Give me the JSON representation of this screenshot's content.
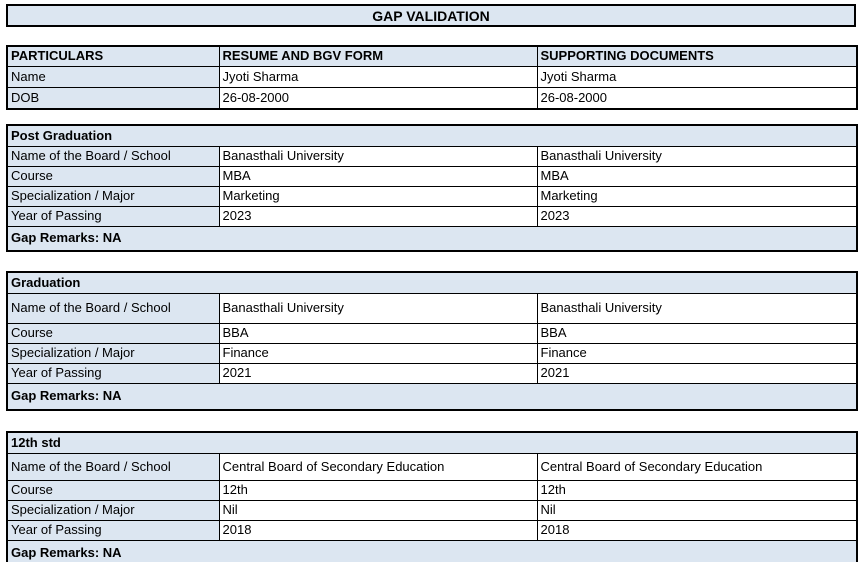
{
  "title": "GAP VALIDATION",
  "colors": {
    "header_fill": "#dce6f1",
    "border": "#000000",
    "text": "#000000",
    "background": "#ffffff"
  },
  "particulars_table": {
    "headers": [
      "PARTICULARS",
      "RESUME AND BGV FORM",
      "SUPPORTING DOCUMENTS"
    ],
    "rows": [
      {
        "label": "Name",
        "resume": "Jyoti Sharma",
        "supporting": "Jyoti Sharma"
      },
      {
        "label": "DOB",
        "resume": "26-08-2000",
        "supporting": "26-08-2000"
      }
    ]
  },
  "sections": [
    {
      "title": "Post Graduation",
      "rows": [
        {
          "label": "Name of the Board / School",
          "resume": "Banasthali University",
          "supporting": "Banasthali University"
        },
        {
          "label": "Course",
          "resume": "MBA",
          "supporting": "MBA"
        },
        {
          "label": "Specialization / Major",
          "resume": "Marketing",
          "supporting": "Marketing"
        },
        {
          "label": "Year of Passing",
          "resume": "2023",
          "supporting": "2023"
        }
      ],
      "gap_remarks": "Gap Remarks: NA"
    },
    {
      "title": "Graduation",
      "rows": [
        {
          "label": "Name of the Board / School",
          "resume": "Banasthali University",
          "supporting": "Banasthali University"
        },
        {
          "label": "Course",
          "resume": "BBA",
          "supporting": "BBA"
        },
        {
          "label": "Specialization / Major",
          "resume": "Finance",
          "supporting": "Finance"
        },
        {
          "label": "Year of Passing",
          "resume": "2021",
          "supporting": "2021"
        }
      ],
      "gap_remarks": "Gap Remarks: NA"
    },
    {
      "title": "12th std",
      "rows": [
        {
          "label": "Name of the Board / School",
          "resume": "Central Board of Secondary Education",
          "supporting": "Central Board of Secondary Education"
        },
        {
          "label": "Course",
          "resume": "12th",
          "supporting": "12th"
        },
        {
          "label": "Specialization / Major",
          "resume": "Nil",
          "supporting": "Nil"
        },
        {
          "label": "Year of Passing",
          "resume": "2018",
          "supporting": "2018"
        }
      ],
      "gap_remarks": "Gap Remarks: NA"
    }
  ]
}
